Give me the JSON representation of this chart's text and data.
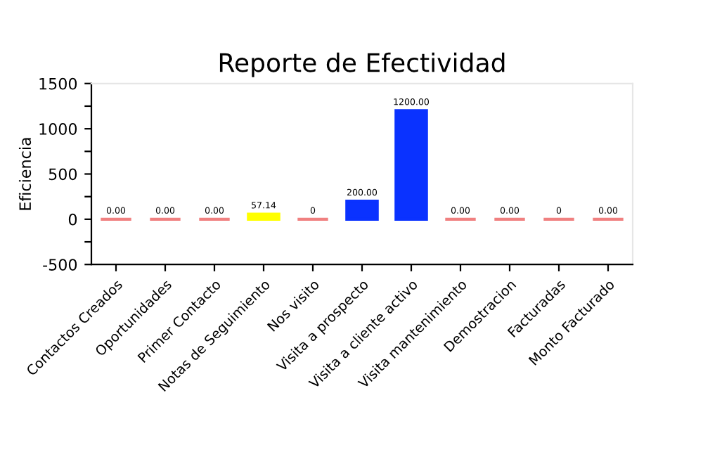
{
  "chart_data": {
    "type": "bar",
    "title": "Reporte de Efectividad",
    "ylabel": "Eficiencia",
    "categories": [
      "Contactos Creados",
      "Oportunidades",
      "Primer Contacto",
      "Notas de Seguimiento",
      "Nos visito",
      "Visita a prospecto",
      "Visita a cliente activo",
      "Visita mantenimiento",
      "Demostracion",
      "Facturadas",
      "Monto Facturado"
    ],
    "values": [
      0,
      0,
      0,
      57.14,
      0,
      200,
      1200,
      0,
      0,
      0,
      0
    ],
    "colors": [
      "#f08080",
      "#f08080",
      "#f08080",
      "#ffff00",
      "#f08080",
      "#0a32ff",
      "#0a32ff",
      "#f08080",
      "#f08080",
      "#f08080",
      "#f08080"
    ],
    "value_labels": [
      "0.00",
      "0.00",
      "0.00",
      "57.14",
      "0",
      "200.00",
      "1200.00",
      "0.00",
      "0.00",
      "0",
      "0.00"
    ],
    "ylim": [
      -500,
      1500
    ],
    "yticks": [
      -500,
      {
        "value": -250,
        "label": null
      },
      0,
      {
        "value": 250,
        "label": null
      },
      500,
      {
        "value": 750,
        "label": null
      },
      1000,
      {
        "value": 1250,
        "label": null
      },
      1500
    ],
    "grid": false
  }
}
